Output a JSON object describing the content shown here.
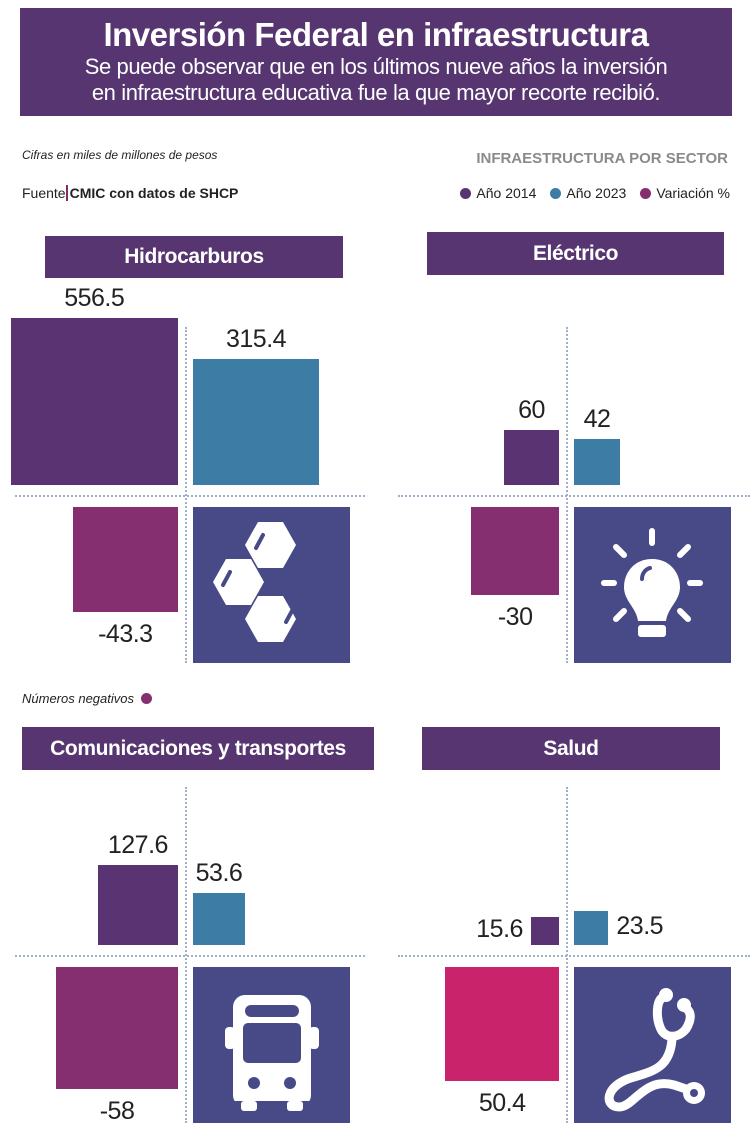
{
  "header": {
    "title": "Inversión Federal en infraestructura",
    "subtitle_line1": "Se puede observar que en los últimos nueve años la inversión",
    "subtitle_line2": "en infraestructura educativa fue la que mayor recorte recibió."
  },
  "notes": {
    "units": "Cifras en miles de millones de pesos",
    "source_prefix": "Fuente",
    "source": "CMIC con datos de SHCP",
    "negatives": "Números negativos"
  },
  "legend": {
    "heading": "INFRAESTRUCTURA POR SECTOR",
    "items": [
      {
        "label": "Año 2014",
        "color": "#5a3472"
      },
      {
        "label": "Año 2023",
        "color": "#3d7ca4"
      },
      {
        "label": "Variación %",
        "color": "#852f70"
      }
    ]
  },
  "colors": {
    "header": "#563570",
    "y2014": "#5a3472",
    "y2023": "#3d7ca4",
    "variation_negative": "#852f70",
    "variation_positive": "#c9246b",
    "icon_box": "#474a86"
  },
  "chart_data": {
    "type": "bar",
    "title": "INFRAESTRUCTURA POR SECTOR",
    "units": "miles de millones de pesos",
    "series_names": [
      "Año 2014",
      "Año 2023",
      "Variación %"
    ],
    "panels": [
      {
        "sector": "Hidrocarburos",
        "icon": "hexagons-icon",
        "y2014": 556.5,
        "y2023": 315.4,
        "variation": -43.3,
        "labels": {
          "y2014": "556.5",
          "y2023": "315.4",
          "variation": "-43.3"
        }
      },
      {
        "sector": "Eléctrico",
        "icon": "lightbulb-icon",
        "y2014": 60,
        "y2023": 42,
        "variation": -30,
        "labels": {
          "y2014": "60",
          "y2023": "42",
          "variation": "-30"
        }
      },
      {
        "sector": "Comunicaciones y transportes",
        "icon": "bus-icon",
        "y2014": 127.6,
        "y2023": 53.6,
        "variation": -58,
        "labels": {
          "y2014": "127.6",
          "y2023": "53.6",
          "variation": "-58"
        }
      },
      {
        "sector": "Salud",
        "icon": "stethoscope-icon",
        "y2014": 15.6,
        "y2023": 23.5,
        "variation": 50.4,
        "labels": {
          "y2014": "15.6",
          "y2023": "23.5",
          "variation": "50.4"
        }
      }
    ]
  }
}
